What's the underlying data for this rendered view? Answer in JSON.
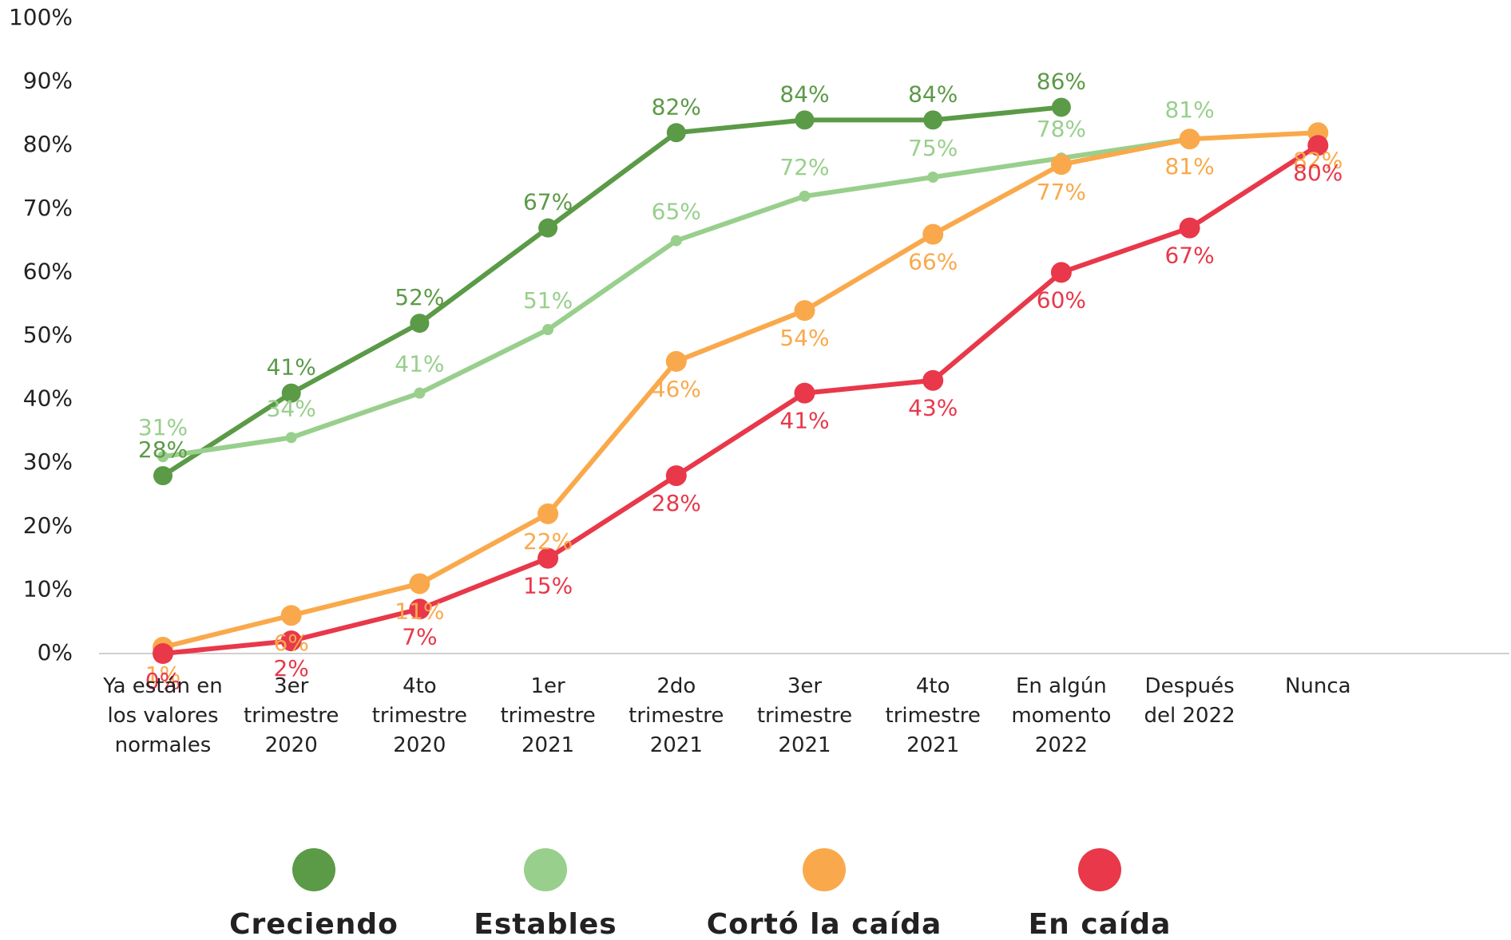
{
  "chart_data": {
    "type": "line",
    "categories": [
      "Ya están en los valores normales",
      "3er trimestre 2020",
      "4to trimestre 2020",
      "1er trimestre 2021",
      "2do trimestre 2021",
      "3er trimestre 2021",
      "4to trimestre 2021",
      "En algún momento 2022",
      "Después del 2022",
      "Nunca"
    ],
    "series": [
      {
        "name": "Creciendo",
        "color": "#5b9a47",
        "values": [
          28,
          41,
          52,
          67,
          82,
          84,
          84,
          86,
          null,
          null
        ],
        "value_labels": [
          "28%",
          "41%",
          "52%",
          "67%",
          "82%",
          "84%",
          "84%",
          "86%",
          null,
          null
        ]
      },
      {
        "name": "Estables",
        "color": "#98cf8c",
        "values": [
          31,
          34,
          41,
          51,
          65,
          72,
          75,
          78,
          81,
          null
        ],
        "value_labels": [
          "31%",
          "34%",
          "41%",
          "51%",
          "65%",
          "72%",
          "75%",
          "78%",
          "81%",
          null
        ]
      },
      {
        "name": "Cortó la caída",
        "color": "#f9a94b",
        "values": [
          1,
          6,
          11,
          22,
          46,
          54,
          66,
          77,
          81,
          82
        ],
        "value_labels": [
          "1%",
          "6%",
          "11%",
          "22%",
          "46%",
          "54%",
          "66%",
          "77%",
          "81%",
          "82%"
        ]
      },
      {
        "name": "En caída",
        "color": "#e8384a",
        "values": [
          0,
          2,
          7,
          15,
          28,
          41,
          43,
          60,
          67,
          80
        ],
        "value_labels": [
          "0%",
          "2%",
          "7%",
          "15%",
          "28%",
          "41%",
          "43%",
          "60%",
          "67%",
          "80%"
        ]
      }
    ],
    "ylim": [
      0,
      100
    ],
    "yticks": [
      {
        "value": 0,
        "label": "0%"
      },
      {
        "value": 10,
        "label": "10%"
      },
      {
        "value": 20,
        "label": "20%"
      },
      {
        "value": 30,
        "label": "30%"
      },
      {
        "value": 40,
        "label": "40%"
      },
      {
        "value": 50,
        "label": "50%"
      },
      {
        "value": 60,
        "label": "60%"
      },
      {
        "value": 70,
        "label": "70%"
      },
      {
        "value": 80,
        "label": "80%"
      },
      {
        "value": 90,
        "label": "90%"
      },
      {
        "value": 100,
        "label": "100%"
      }
    ],
    "grid": false
  }
}
